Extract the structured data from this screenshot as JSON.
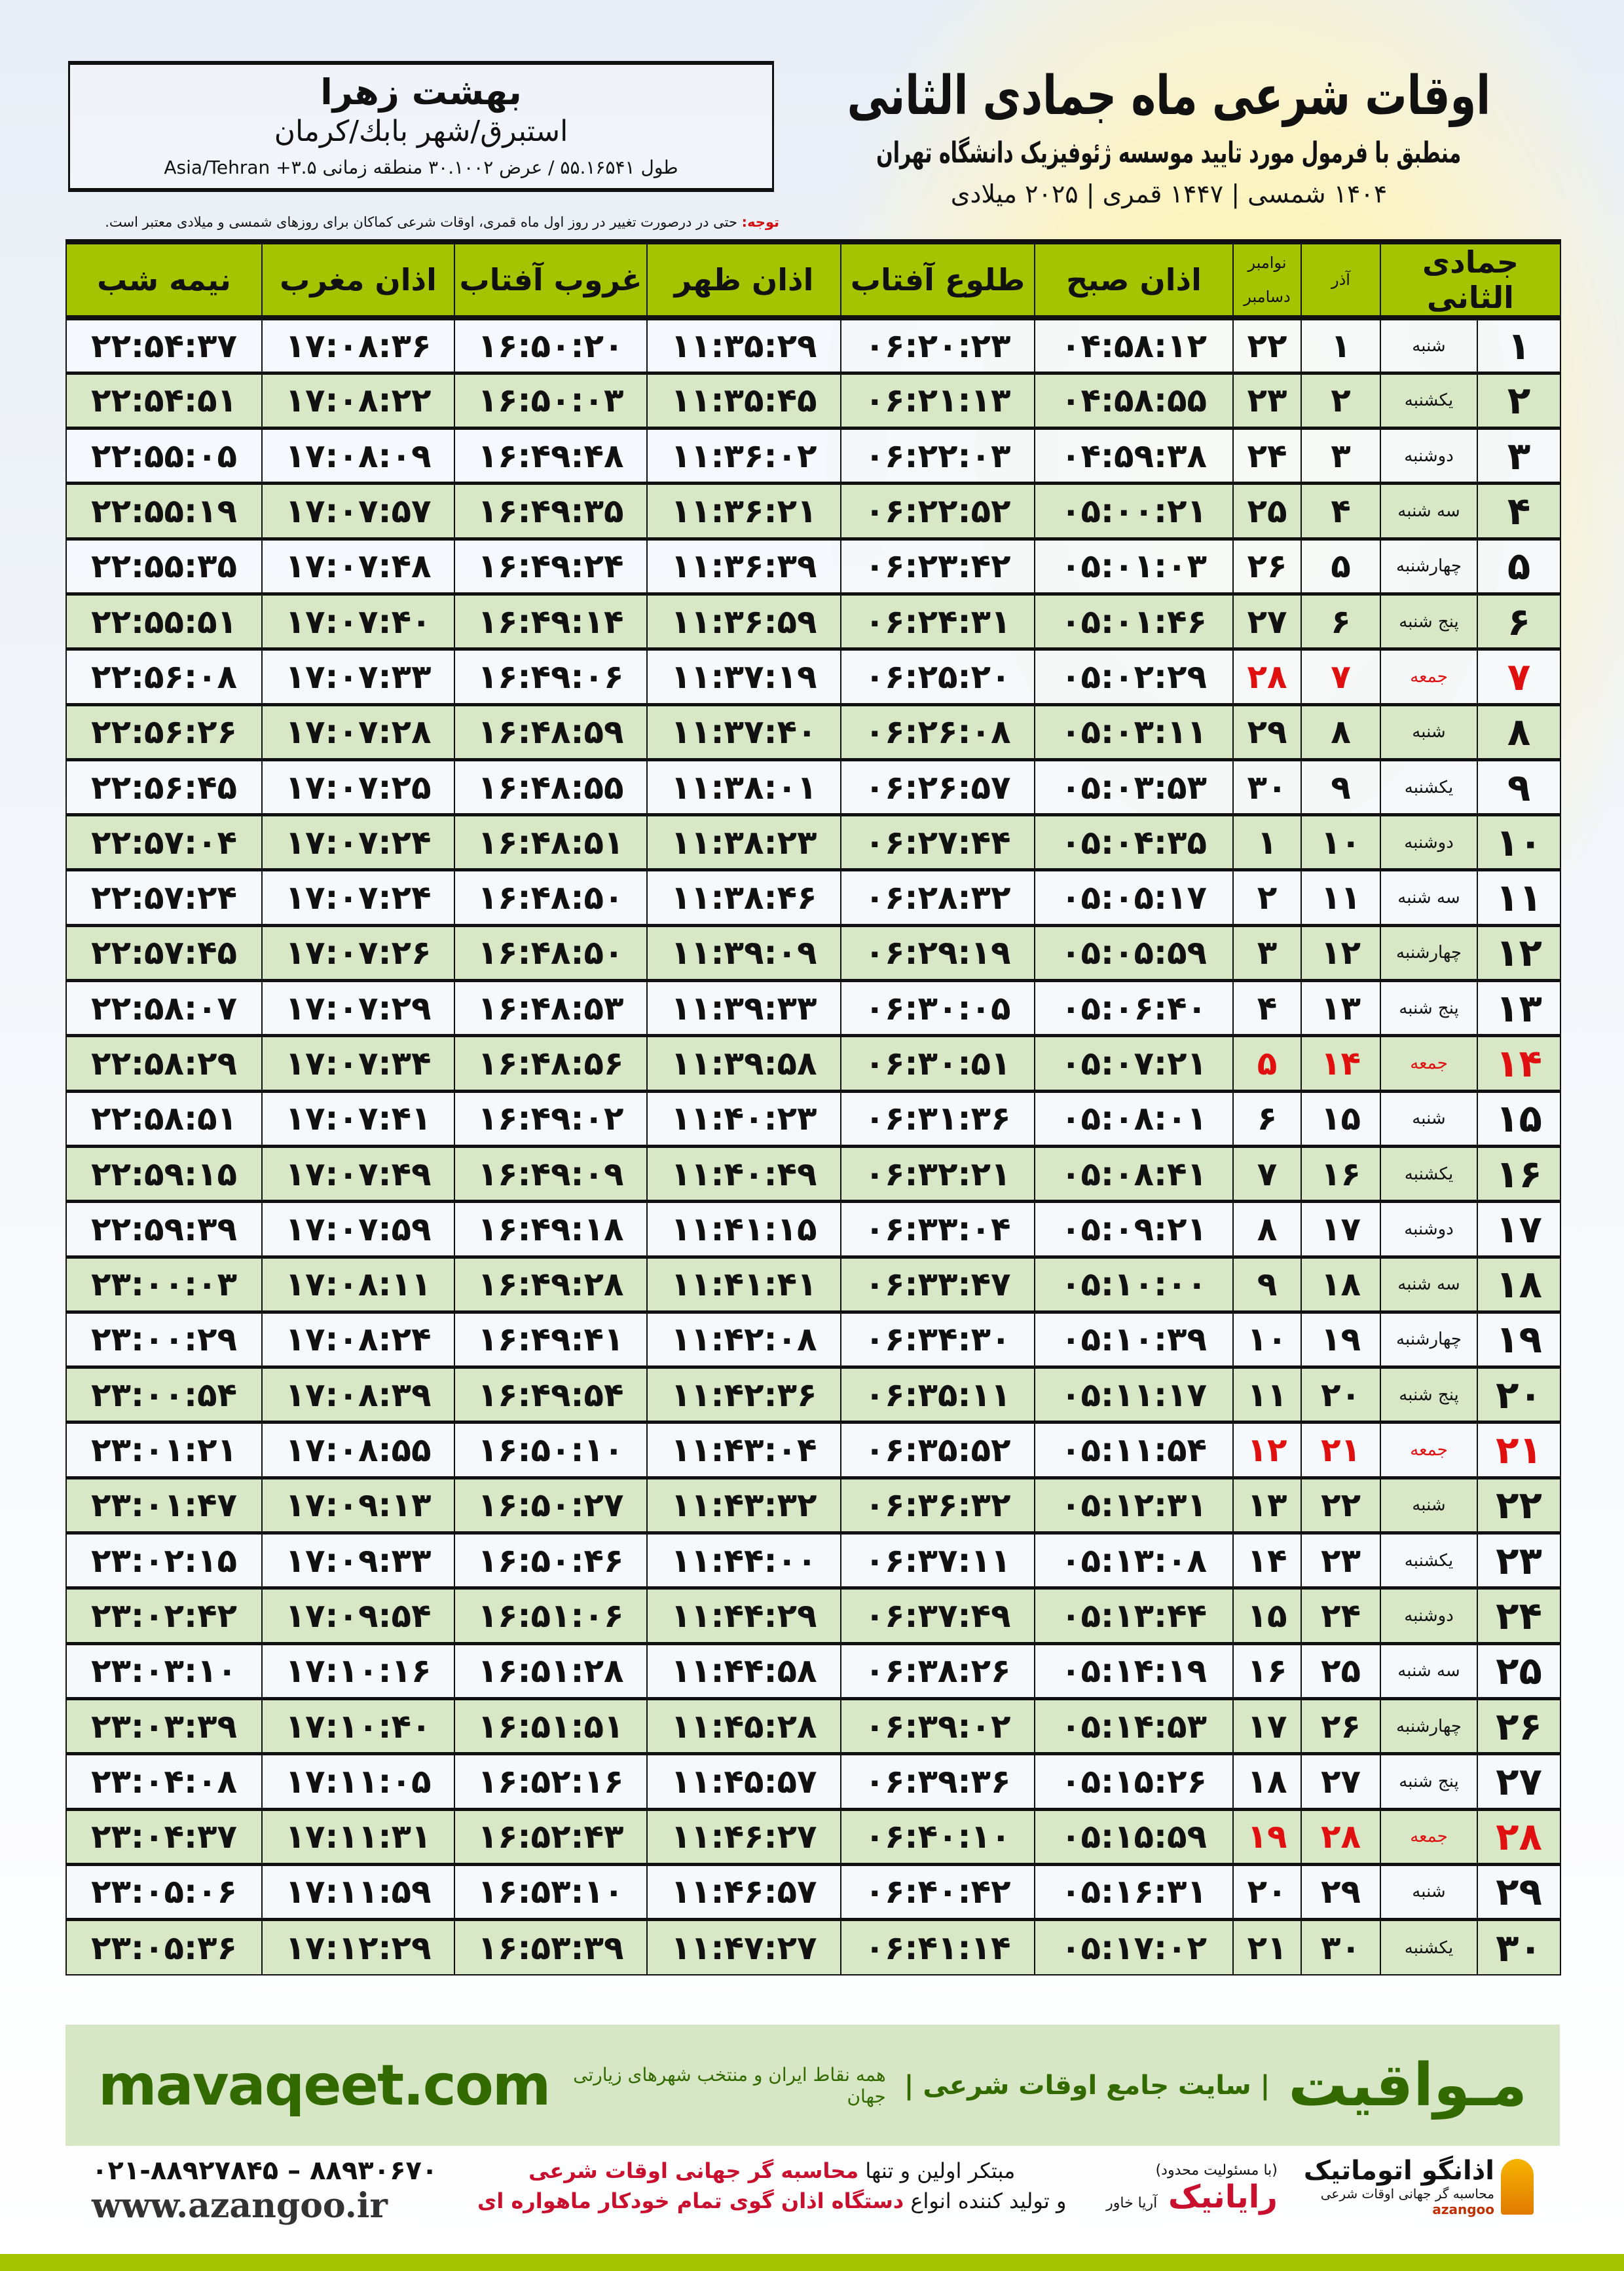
{
  "location": {
    "city": "بهشت زهرا",
    "region": "استبرق/شهر بابك/كرمان",
    "coords": "طول ۵۵.۱۶۵۴۱ / عرض ۳۰.۱۰۰۲ منطقه زمانی ۳.۵+ Asia/Tehran"
  },
  "title": {
    "main": "اوقات شرعی ماه جمادی الثانی",
    "sub": "منطبق با فرمول مورد تایید موسسه ژئوفیزیک دانشگاه تهران",
    "years": "۱۴۰۴ شمسی | ۱۴۴۷ قمری | ۲۰۲۵ میلادی"
  },
  "note": {
    "label": "توجه:",
    "text": " حتی در درصورت تغییر در روز اول ماه قمری، اوقات شرعی کماکان برای روزهای شمسی و میلادی معتبر است."
  },
  "colors": {
    "header": "#a5c400",
    "alt_row": "#d8e7c6",
    "holiday": "#e01010"
  },
  "table": {
    "headers": {
      "hijri": "جمادی الثانی",
      "azar": "آذر",
      "greg_top": "نوامبر",
      "greg_bottom": "دسامبر",
      "sobh": "اذان صبح",
      "tolu": "طلوع آفتاب",
      "zohr": "اذان ظهر",
      "ghorub": "غروب آفتاب",
      "maghrib": "اذان مغرب",
      "nimeshab": "نیمه شب"
    },
    "holiday_day": "جمعه",
    "rows": [
      [
        "۱",
        "شنبه",
        "۱",
        "۲۲",
        "۰۴:۵۸:۱۲",
        "۰۶:۲۰:۲۳",
        "۱۱:۳۵:۲۹",
        "۱۶:۵۰:۲۰",
        "۱۷:۰۸:۳۶",
        "۲۲:۵۴:۳۷"
      ],
      [
        "۲",
        "یکشنبه",
        "۲",
        "۲۳",
        "۰۴:۵۸:۵۵",
        "۰۶:۲۱:۱۳",
        "۱۱:۳۵:۴۵",
        "۱۶:۵۰:۰۳",
        "۱۷:۰۸:۲۲",
        "۲۲:۵۴:۵۱"
      ],
      [
        "۳",
        "دوشنبه",
        "۳",
        "۲۴",
        "۰۴:۵۹:۳۸",
        "۰۶:۲۲:۰۳",
        "۱۱:۳۶:۰۲",
        "۱۶:۴۹:۴۸",
        "۱۷:۰۸:۰۹",
        "۲۲:۵۵:۰۵"
      ],
      [
        "۴",
        "سه شنبه",
        "۴",
        "۲۵",
        "۰۵:۰۰:۲۱",
        "۰۶:۲۲:۵۲",
        "۱۱:۳۶:۲۱",
        "۱۶:۴۹:۳۵",
        "۱۷:۰۷:۵۷",
        "۲۲:۵۵:۱۹"
      ],
      [
        "۵",
        "چهارشنبه",
        "۵",
        "۲۶",
        "۰۵:۰۱:۰۳",
        "۰۶:۲۳:۴۲",
        "۱۱:۳۶:۳۹",
        "۱۶:۴۹:۲۴",
        "۱۷:۰۷:۴۸",
        "۲۲:۵۵:۳۵"
      ],
      [
        "۶",
        "پنج شنبه",
        "۶",
        "۲۷",
        "۰۵:۰۱:۴۶",
        "۰۶:۲۴:۳۱",
        "۱۱:۳۶:۵۹",
        "۱۶:۴۹:۱۴",
        "۱۷:۰۷:۴۰",
        "۲۲:۵۵:۵۱"
      ],
      [
        "۷",
        "جمعه",
        "۷",
        "۲۸",
        "۰۵:۰۲:۲۹",
        "۰۶:۲۵:۲۰",
        "۱۱:۳۷:۱۹",
        "۱۶:۴۹:۰۶",
        "۱۷:۰۷:۳۳",
        "۲۲:۵۶:۰۸"
      ],
      [
        "۸",
        "شنبه",
        "۸",
        "۲۹",
        "۰۵:۰۳:۱۱",
        "۰۶:۲۶:۰۸",
        "۱۱:۳۷:۴۰",
        "۱۶:۴۸:۵۹",
        "۱۷:۰۷:۲۸",
        "۲۲:۵۶:۲۶"
      ],
      [
        "۹",
        "یکشنبه",
        "۹",
        "۳۰",
        "۰۵:۰۳:۵۳",
        "۰۶:۲۶:۵۷",
        "۱۱:۳۸:۰۱",
        "۱۶:۴۸:۵۵",
        "۱۷:۰۷:۲۵",
        "۲۲:۵۶:۴۵"
      ],
      [
        "۱۰",
        "دوشنبه",
        "۱۰",
        "۱",
        "۰۵:۰۴:۳۵",
        "۰۶:۲۷:۴۴",
        "۱۱:۳۸:۲۳",
        "۱۶:۴۸:۵۱",
        "۱۷:۰۷:۲۴",
        "۲۲:۵۷:۰۴"
      ],
      [
        "۱۱",
        "سه شنبه",
        "۱۱",
        "۲",
        "۰۵:۰۵:۱۷",
        "۰۶:۲۸:۳۲",
        "۱۱:۳۸:۴۶",
        "۱۶:۴۸:۵۰",
        "۱۷:۰۷:۲۴",
        "۲۲:۵۷:۲۴"
      ],
      [
        "۱۲",
        "چهارشنبه",
        "۱۲",
        "۳",
        "۰۵:۰۵:۵۹",
        "۰۶:۲۹:۱۹",
        "۱۱:۳۹:۰۹",
        "۱۶:۴۸:۵۰",
        "۱۷:۰۷:۲۶",
        "۲۲:۵۷:۴۵"
      ],
      [
        "۱۳",
        "پنج شنبه",
        "۱۳",
        "۴",
        "۰۵:۰۶:۴۰",
        "۰۶:۳۰:۰۵",
        "۱۱:۳۹:۳۳",
        "۱۶:۴۸:۵۳",
        "۱۷:۰۷:۲۹",
        "۲۲:۵۸:۰۷"
      ],
      [
        "۱۴",
        "جمعه",
        "۱۴",
        "۵",
        "۰۵:۰۷:۲۱",
        "۰۶:۳۰:۵۱",
        "۱۱:۳۹:۵۸",
        "۱۶:۴۸:۵۶",
        "۱۷:۰۷:۳۴",
        "۲۲:۵۸:۲۹"
      ],
      [
        "۱۵",
        "شنبه",
        "۱۵",
        "۶",
        "۰۵:۰۸:۰۱",
        "۰۶:۳۱:۳۶",
        "۱۱:۴۰:۲۳",
        "۱۶:۴۹:۰۲",
        "۱۷:۰۷:۴۱",
        "۲۲:۵۸:۵۱"
      ],
      [
        "۱۶",
        "یکشنبه",
        "۱۶",
        "۷",
        "۰۵:۰۸:۴۱",
        "۰۶:۳۲:۲۱",
        "۱۱:۴۰:۴۹",
        "۱۶:۴۹:۰۹",
        "۱۷:۰۷:۴۹",
        "۲۲:۵۹:۱۵"
      ],
      [
        "۱۷",
        "دوشنبه",
        "۱۷",
        "۸",
        "۰۵:۰۹:۲۱",
        "۰۶:۳۳:۰۴",
        "۱۱:۴۱:۱۵",
        "۱۶:۴۹:۱۸",
        "۱۷:۰۷:۵۹",
        "۲۲:۵۹:۳۹"
      ],
      [
        "۱۸",
        "سه شنبه",
        "۱۸",
        "۹",
        "۰۵:۱۰:۰۰",
        "۰۶:۳۳:۴۷",
        "۱۱:۴۱:۴۱",
        "۱۶:۴۹:۲۸",
        "۱۷:۰۸:۱۱",
        "۲۳:۰۰:۰۳"
      ],
      [
        "۱۹",
        "چهارشنبه",
        "۱۹",
        "۱۰",
        "۰۵:۱۰:۳۹",
        "۰۶:۳۴:۳۰",
        "۱۱:۴۲:۰۸",
        "۱۶:۴۹:۴۱",
        "۱۷:۰۸:۲۴",
        "۲۳:۰۰:۲۹"
      ],
      [
        "۲۰",
        "پنج شنبه",
        "۲۰",
        "۱۱",
        "۰۵:۱۱:۱۷",
        "۰۶:۳۵:۱۱",
        "۱۱:۴۲:۳۶",
        "۱۶:۴۹:۵۴",
        "۱۷:۰۸:۳۹",
        "۲۳:۰۰:۵۴"
      ],
      [
        "۲۱",
        "جمعه",
        "۲۱",
        "۱۲",
        "۰۵:۱۱:۵۴",
        "۰۶:۳۵:۵۲",
        "۱۱:۴۳:۰۴",
        "۱۶:۵۰:۱۰",
        "۱۷:۰۸:۵۵",
        "۲۳:۰۱:۲۱"
      ],
      [
        "۲۲",
        "شنبه",
        "۲۲",
        "۱۳",
        "۰۵:۱۲:۳۱",
        "۰۶:۳۶:۳۲",
        "۱۱:۴۳:۳۲",
        "۱۶:۵۰:۲۷",
        "۱۷:۰۹:۱۳",
        "۲۳:۰۱:۴۷"
      ],
      [
        "۲۳",
        "یکشنبه",
        "۲۳",
        "۱۴",
        "۰۵:۱۳:۰۸",
        "۰۶:۳۷:۱۱",
        "۱۱:۴۴:۰۰",
        "۱۶:۵۰:۴۶",
        "۱۷:۰۹:۳۳",
        "۲۳:۰۲:۱۵"
      ],
      [
        "۲۴",
        "دوشنبه",
        "۲۴",
        "۱۵",
        "۰۵:۱۳:۴۴",
        "۰۶:۳۷:۴۹",
        "۱۱:۴۴:۲۹",
        "۱۶:۵۱:۰۶",
        "۱۷:۰۹:۵۴",
        "۲۳:۰۲:۴۲"
      ],
      [
        "۲۵",
        "سه شنبه",
        "۲۵",
        "۱۶",
        "۰۵:۱۴:۱۹",
        "۰۶:۳۸:۲۶",
        "۱۱:۴۴:۵۸",
        "۱۶:۵۱:۲۸",
        "۱۷:۱۰:۱۶",
        "۲۳:۰۳:۱۰"
      ],
      [
        "۲۶",
        "چهارشنبه",
        "۲۶",
        "۱۷",
        "۰۵:۱۴:۵۳",
        "۰۶:۳۹:۰۲",
        "۱۱:۴۵:۲۸",
        "۱۶:۵۱:۵۱",
        "۱۷:۱۰:۴۰",
        "۲۳:۰۳:۳۹"
      ],
      [
        "۲۷",
        "پنج شنبه",
        "۲۷",
        "۱۸",
        "۰۵:۱۵:۲۶",
        "۰۶:۳۹:۳۶",
        "۱۱:۴۵:۵۷",
        "۱۶:۵۲:۱۶",
        "۱۷:۱۱:۰۵",
        "۲۳:۰۴:۰۸"
      ],
      [
        "۲۸",
        "جمعه",
        "۲۸",
        "۱۹",
        "۰۵:۱۵:۵۹",
        "۰۶:۴۰:۱۰",
        "۱۱:۴۶:۲۷",
        "۱۶:۵۲:۴۳",
        "۱۷:۱۱:۳۱",
        "۲۳:۰۴:۳۷"
      ],
      [
        "۲۹",
        "شنبه",
        "۲۹",
        "۲۰",
        "۰۵:۱۶:۳۱",
        "۰۶:۴۰:۴۲",
        "۱۱:۴۶:۵۷",
        "۱۶:۵۳:۱۰",
        "۱۷:۱۱:۵۹",
        "۲۳:۰۵:۰۶"
      ],
      [
        "۳۰",
        "یکشنبه",
        "۳۰",
        "۲۱",
        "۰۵:۱۷:۰۲",
        "۰۶:۴۱:۱۴",
        "۱۱:۴۷:۲۷",
        "۱۶:۵۳:۳۹",
        "۱۷:۱۲:۲۹",
        "۲۳:۰۵:۳۶"
      ]
    ]
  },
  "banner": {
    "brand": "مـواقیت",
    "tagline": "| سایت جامع اوقات شرعی |",
    "tagline2": "همه نقاط ایران و منتخب شهرهای زیارتی جهان",
    "site": "mavaqeet.com"
  },
  "footer": {
    "phone": "۰۲۱-۸۸۹۲۷۸۴۵ – ۸۸۹۳۰۶۷۰",
    "web": "www.azangoo.ir",
    "promo1a": "مبتکر اولین و تنها ",
    "promo1b": "محاسبه گر جهانی اوقات شرعی",
    "promo2a": "و تولید کننده انواع ",
    "promo2b": "دستگاه اذان گوی تمام خودکار ماهواره ای",
    "logo_rayanik": "رایانیک",
    "logo_rayanik_sub": "آریا خاور",
    "logo_rayanik_note": "(با مسئولیت محدود)",
    "logo_azangoo": "اذانگو اتوماتیک",
    "logo_azangoo_sub": "محاسبه گر جهانی اوقات شرعی",
    "logo_azangoo_en": "azangoo"
  }
}
